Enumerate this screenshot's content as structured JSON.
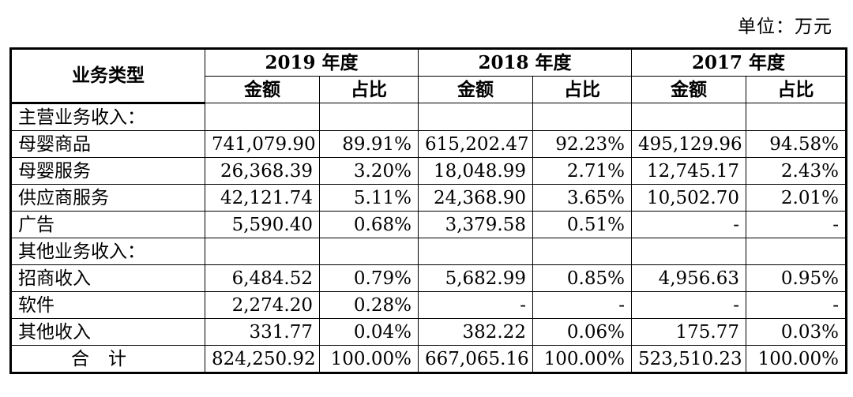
{
  "unit_label": "单位：万元",
  "header": {
    "type_label": "业务类型",
    "years": [
      "2019 年度",
      "2018 年度",
      "2017 年度"
    ],
    "amount_label": "金额",
    "ratio_label": "占比"
  },
  "sections": {
    "main": {
      "title": "主营业务收入：",
      "rows": [
        {
          "name": "母婴商品",
          "a2019": "741,079.90",
          "r2019": "89.91%",
          "a2018": "615,202.47",
          "r2018": "92.23%",
          "a2017": "495,129.96",
          "r2017": "94.58%"
        },
        {
          "name": "母婴服务",
          "a2019": "26,368.39",
          "r2019": "3.20%",
          "a2018": "18,048.99",
          "r2018": "2.71%",
          "a2017": "12,745.17",
          "r2017": "2.43%"
        },
        {
          "name": "供应商服务",
          "a2019": "42,121.74",
          "r2019": "5.11%",
          "a2018": "24,368.90",
          "r2018": "3.65%",
          "a2017": "10,502.70",
          "r2017": "2.01%"
        },
        {
          "name": "广告",
          "a2019": "5,590.40",
          "r2019": "0.68%",
          "a2018": "3,379.58",
          "r2018": "0.51%",
          "a2017": "-",
          "r2017": "-"
        }
      ]
    },
    "other": {
      "title": "其他业务收入：",
      "rows": [
        {
          "name": "招商收入",
          "a2019": "6,484.52",
          "r2019": "0.79%",
          "a2018": "5,682.99",
          "r2018": "0.85%",
          "a2017": "4,956.63",
          "r2017": "0.95%"
        },
        {
          "name": "软件",
          "a2019": "2,274.20",
          "r2019": "0.28%",
          "a2018": "-",
          "r2018": "-",
          "a2017": "-",
          "r2017": "-"
        },
        {
          "name": "其他收入",
          "a2019": "331.77",
          "r2019": "0.04%",
          "a2018": "382.22",
          "r2018": "0.06%",
          "a2017": "175.77",
          "r2017": "0.03%"
        }
      ]
    }
  },
  "total": {
    "label": "合计",
    "a2019": "824,250.92",
    "r2019": "100.00%",
    "a2018": "667,065.16",
    "r2018": "100.00%",
    "a2017": "523,510.23",
    "r2017": "100.00%"
  }
}
